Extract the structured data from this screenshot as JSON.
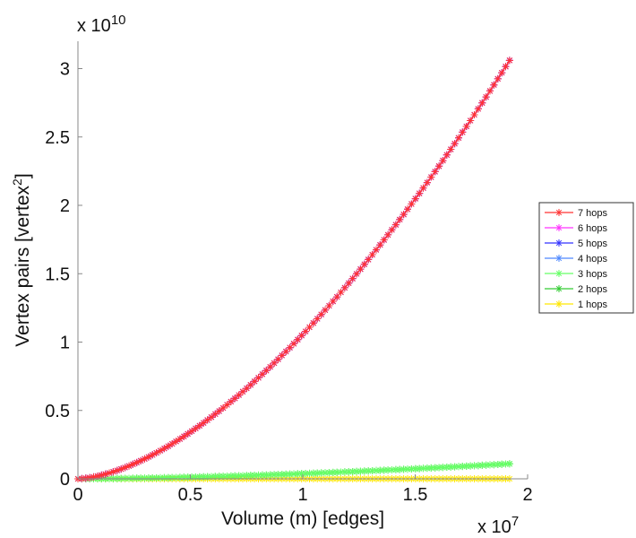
{
  "chart_data": {
    "type": "line",
    "xlabel": "Volume (m) [edges]",
    "ylabel_base": "Vertex pairs [vertex",
    "ylabel_sup": "2",
    "ylabel_end": "]",
    "x_exponent": {
      "base": "x 10",
      "power": "7"
    },
    "y_exponent": {
      "base": "x 10",
      "power": "10"
    },
    "xlim": [
      0,
      2
    ],
    "ylim": [
      0,
      3.2
    ],
    "xticks": [
      0,
      0.5,
      1,
      1.5,
      2
    ],
    "xtick_labels": [
      "0",
      "0.5",
      "1",
      "1.5",
      "2"
    ],
    "yticks": [
      0,
      0.5,
      1,
      1.5,
      2,
      2.5,
      3
    ],
    "ytick_labels": [
      "0",
      "0.5",
      "1",
      "1.5",
      "2",
      "2.5",
      "3"
    ],
    "grid": false,
    "legend_position": "right",
    "x_max": 1.92,
    "series": [
      {
        "name": "7 hops",
        "color": "#ff3333",
        "y_end": 3.06
      },
      {
        "name": "6 hops",
        "color": "#ff33ff",
        "y_end": 3.06
      },
      {
        "name": "5 hops",
        "color": "#3333ff",
        "y_end": 3.06
      },
      {
        "name": "4 hops",
        "color": "#4d88ff",
        "y_end": 3.06
      },
      {
        "name": "3 hops",
        "color": "#66ff66",
        "y_end": 0.11
      },
      {
        "name": "2 hops",
        "color": "#33cc33",
        "y_end": 0.11
      },
      {
        "name": "1 hops",
        "color": "#ffe600",
        "y_end": 0.0
      }
    ],
    "curve_exponent": 1.63,
    "marker": "*"
  }
}
